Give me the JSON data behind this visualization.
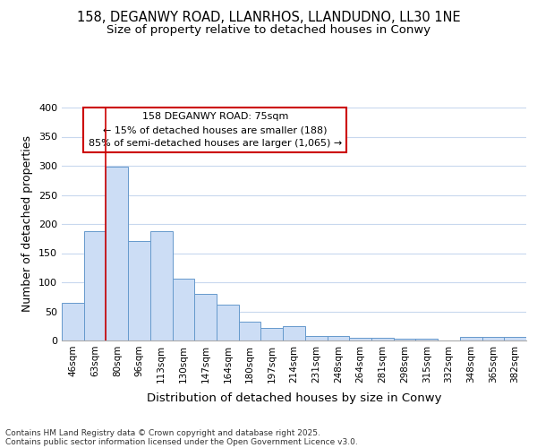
{
  "title1": "158, DEGANWY ROAD, LLANRHOS, LLANDUDNO, LL30 1NE",
  "title2": "Size of property relative to detached houses in Conwy",
  "xlabel": "Distribution of detached houses by size in Conwy",
  "ylabel": "Number of detached properties",
  "bar_labels": [
    "46sqm",
    "63sqm",
    "80sqm",
    "96sqm",
    "113sqm",
    "130sqm",
    "147sqm",
    "164sqm",
    "180sqm",
    "197sqm",
    "214sqm",
    "231sqm",
    "248sqm",
    "264sqm",
    "281sqm",
    "298sqm",
    "315sqm",
    "332sqm",
    "348sqm",
    "365sqm",
    "382sqm"
  ],
  "bar_values": [
    65,
    188,
    298,
    171,
    188,
    106,
    80,
    62,
    32,
    22,
    25,
    8,
    8,
    4,
    4,
    3,
    3,
    0,
    6,
    6,
    6
  ],
  "bar_color": "#ccddf5",
  "bar_edge_color": "#6699cc",
  "red_line_x": 1.5,
  "annotation_text": "158 DEGANWY ROAD: 75sqm\n← 15% of detached houses are smaller (188)\n85% of semi-detached houses are larger (1,065) →",
  "annotation_box_color": "#ffffff",
  "annotation_border_color": "#cc0000",
  "ylim": [
    0,
    400
  ],
  "yticks": [
    0,
    50,
    100,
    150,
    200,
    250,
    300,
    350,
    400
  ],
  "footer1": "Contains HM Land Registry data © Crown copyright and database right 2025.",
  "footer2": "Contains public sector information licensed under the Open Government Licence v3.0.",
  "bg_color": "#ffffff",
  "plot_bg_color": "#ffffff",
  "grid_color": "#c8d8ee",
  "title_fontsize": 10.5,
  "subtitle_fontsize": 9.5,
  "axis_label_fontsize": 9,
  "tick_fontsize": 7.5,
  "footer_fontsize": 6.5
}
